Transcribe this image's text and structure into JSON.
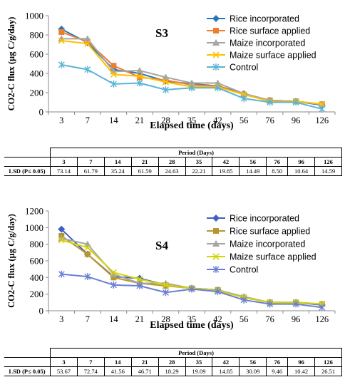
{
  "panels": [
    {
      "panel_label": "S3",
      "ylabel": "CO2-C flux (µg C/g/day)",
      "xlabel": "Elapsed time (days)",
      "table": {
        "header": "Period (Days)",
        "row_label": "LSD (P≤ 0.05)",
        "days": [
          "3",
          "7",
          "14",
          "21",
          "28",
          "35",
          "42",
          "56",
          "76",
          "96",
          "126"
        ],
        "values": [
          "73.14",
          "61.79",
          "35.24",
          "61.59",
          "24.63",
          "22.21",
          "19.85",
          "14.49",
          "8.50",
          "10.64",
          "14.59"
        ]
      }
    },
    {
      "panel_label": "S4",
      "ylabel": "CO2-C flux (µg C/g/day)",
      "xlabel": "Elapsed time (days)",
      "table": {
        "header": "Period (Days)",
        "row_label": "LSD (P≤ 0.05)",
        "days": [
          "3",
          "7",
          "14",
          "21",
          "28",
          "35",
          "42",
          "56",
          "76",
          "96",
          "126"
        ],
        "values": [
          "53.67",
          "72.74",
          "41.56",
          "46.71",
          "18.29",
          "19.09",
          "14.85",
          "30.09",
          "9.46",
          "10.42",
          "26.51"
        ]
      }
    }
  ],
  "chart_data": [
    {
      "type": "line",
      "title": "S3",
      "xlabel": "Elapsed time (days)",
      "ylabel": "CO2-C flux (µg C/g/day)",
      "categories": [
        "3",
        "7",
        "14",
        "21",
        "28",
        "35",
        "42",
        "56",
        "76",
        "96",
        "126"
      ],
      "ylim": [
        0,
        1000
      ],
      "yticks": [
        0,
        200,
        400,
        600,
        800,
        1000
      ],
      "grid": false,
      "legend": "top-right",
      "series": [
        {
          "name": "Rice incorporated",
          "color": "#2e75b6",
          "marker": "diamond",
          "values": [
            860,
            720,
            440,
            400,
            320,
            290,
            270,
            190,
            120,
            110,
            70
          ]
        },
        {
          "name": "Rice surface applied",
          "color": "#ed7d31",
          "marker": "square",
          "values": [
            830,
            730,
            480,
            360,
            330,
            280,
            270,
            180,
            120,
            110,
            80
          ]
        },
        {
          "name": "Maize incorporated",
          "color": "#a5a5a5",
          "marker": "triangle",
          "values": [
            760,
            760,
            420,
            430,
            360,
            300,
            300,
            190,
            120,
            110,
            80
          ]
        },
        {
          "name": "Maize surface applied",
          "color": "#ffc000",
          "marker": "x",
          "values": [
            740,
            710,
            390,
            370,
            310,
            260,
            260,
            180,
            110,
            110,
            80
          ]
        },
        {
          "name": "Control",
          "color": "#5ab4d6",
          "marker": "asterisk",
          "values": [
            490,
            440,
            290,
            300,
            230,
            250,
            250,
            140,
            100,
            100,
            30
          ]
        }
      ]
    },
    {
      "type": "line",
      "title": "S4",
      "xlabel": "Elapsed time (days)",
      "ylabel": "CO2-C flux (µg C/g/day)",
      "categories": [
        "3",
        "7",
        "14",
        "21",
        "28",
        "35",
        "42",
        "56",
        "76",
        "96",
        "126"
      ],
      "ylim": [
        0,
        1200
      ],
      "yticks": [
        0,
        200,
        400,
        600,
        800,
        1000,
        1200
      ],
      "grid": false,
      "legend": "top-right",
      "series": [
        {
          "name": "Rice incorporated",
          "color": "#3f5fc8",
          "marker": "diamond",
          "values": [
            980,
            680,
            410,
            390,
            310,
            270,
            250,
            160,
            100,
            100,
            70
          ]
        },
        {
          "name": "Rice surface applied",
          "color": "#b8962e",
          "marker": "square",
          "values": [
            900,
            680,
            400,
            330,
            300,
            270,
            250,
            160,
            100,
            100,
            80
          ]
        },
        {
          "name": "Maize incorporated",
          "color": "#a5a5a5",
          "marker": "triangle",
          "values": [
            870,
            800,
            440,
            330,
            330,
            270,
            250,
            170,
            100,
            100,
            80
          ]
        },
        {
          "name": "Maize surface applied",
          "color": "#d4d400",
          "marker": "x",
          "values": [
            850,
            760,
            460,
            380,
            310,
            270,
            240,
            160,
            100,
            100,
            80
          ]
        },
        {
          "name": "Control",
          "color": "#6a7fd6",
          "marker": "asterisk",
          "values": [
            440,
            410,
            310,
            300,
            220,
            260,
            230,
            130,
            80,
            80,
            40
          ]
        }
      ]
    }
  ]
}
